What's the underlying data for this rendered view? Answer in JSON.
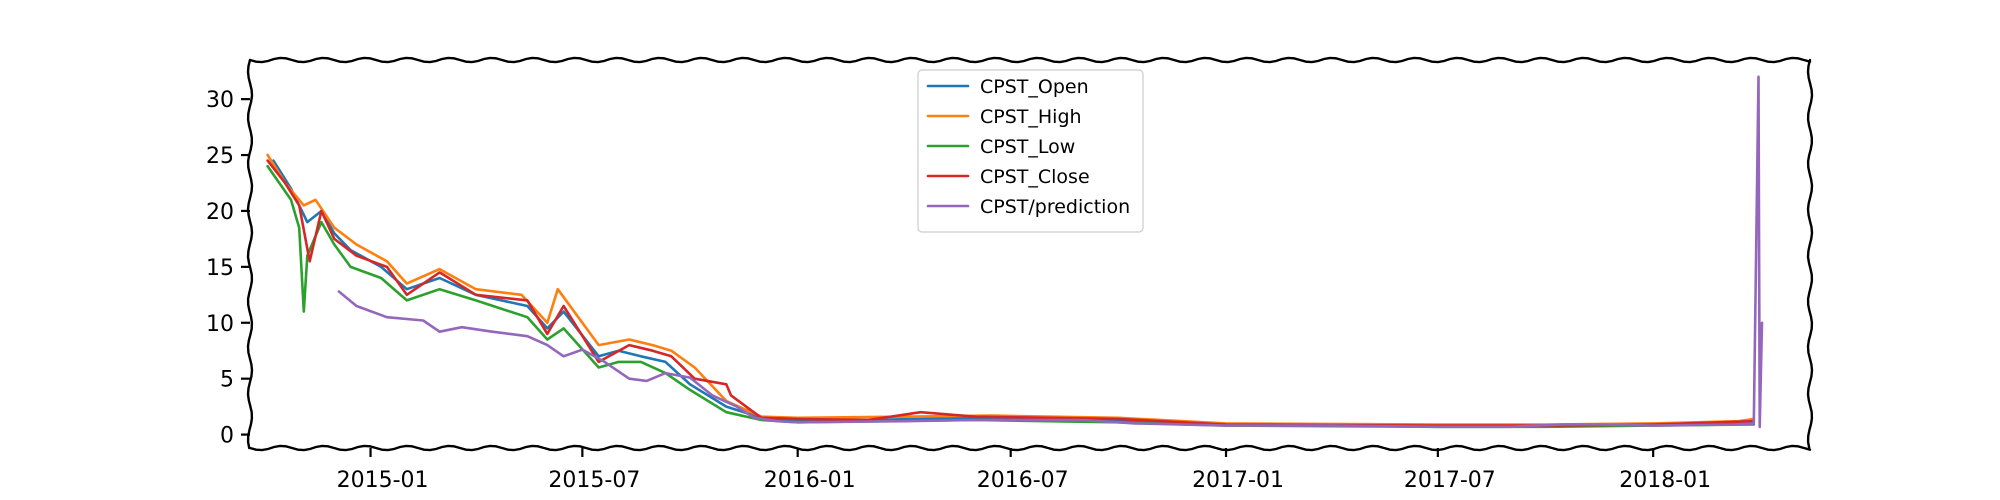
{
  "chart_data": {
    "type": "line",
    "title": "",
    "xlabel": "",
    "ylabel": "",
    "x_range": [
      "2014-09-20",
      "2018-05-15"
    ],
    "ylim": [
      -1.2,
      33.5
    ],
    "grid": false,
    "legend_placement": "top-center",
    "x_ticks": [
      "2015-01",
      "2015-07",
      "2016-01",
      "2016-07",
      "2017-01",
      "2017-07",
      "2018-01"
    ],
    "y_ticks": [
      0,
      5,
      10,
      15,
      20,
      25,
      30
    ],
    "series": [
      {
        "name": "CPST_Open",
        "color": "#1f77b4",
        "points": [
          [
            "2014-10-10",
            24.5
          ],
          [
            "2014-10-25",
            22.0
          ],
          [
            "2014-11-08",
            19.0
          ],
          [
            "2014-11-20",
            20.0
          ],
          [
            "2014-12-01",
            18.0
          ],
          [
            "2014-12-15",
            16.5
          ],
          [
            "2015-01-10",
            15.0
          ],
          [
            "2015-02-01",
            13.0
          ],
          [
            "2015-03-01",
            14.0
          ],
          [
            "2015-04-01",
            12.5
          ],
          [
            "2015-05-15",
            11.5
          ],
          [
            "2015-06-01",
            9.5
          ],
          [
            "2015-06-15",
            11.0
          ],
          [
            "2015-07-15",
            7.0
          ],
          [
            "2015-08-01",
            7.5
          ],
          [
            "2015-08-20",
            7.0
          ],
          [
            "2015-09-10",
            6.5
          ],
          [
            "2015-10-01",
            4.5
          ],
          [
            "2015-11-01",
            2.5
          ],
          [
            "2015-12-01",
            1.5
          ],
          [
            "2016-01-01",
            1.3
          ],
          [
            "2016-03-01",
            1.3
          ],
          [
            "2016-06-01",
            1.5
          ],
          [
            "2016-10-01",
            1.3
          ],
          [
            "2017-01-01",
            0.9
          ],
          [
            "2017-07-01",
            0.8
          ],
          [
            "2017-10-01",
            0.8
          ],
          [
            "2018-01-01",
            0.9
          ],
          [
            "2018-03-15",
            1.0
          ],
          [
            "2018-03-28",
            1.1
          ]
        ]
      },
      {
        "name": "CPST_High",
        "color": "#ff7f0e",
        "points": [
          [
            "2014-10-05",
            25.0
          ],
          [
            "2014-10-20",
            22.5
          ],
          [
            "2014-11-05",
            20.5
          ],
          [
            "2014-11-15",
            21.0
          ],
          [
            "2014-12-01",
            18.5
          ],
          [
            "2014-12-20",
            17.0
          ],
          [
            "2015-01-15",
            15.5
          ],
          [
            "2015-02-01",
            13.5
          ],
          [
            "2015-03-01",
            14.8
          ],
          [
            "2015-04-01",
            13.0
          ],
          [
            "2015-05-10",
            12.5
          ],
          [
            "2015-06-01",
            10.0
          ],
          [
            "2015-06-10",
            13.0
          ],
          [
            "2015-07-15",
            8.0
          ],
          [
            "2015-08-10",
            8.5
          ],
          [
            "2015-08-30",
            8.0
          ],
          [
            "2015-09-15",
            7.5
          ],
          [
            "2015-10-05",
            6.0
          ],
          [
            "2015-11-01",
            3.0
          ],
          [
            "2015-12-01",
            1.6
          ],
          [
            "2016-01-01",
            1.5
          ],
          [
            "2016-04-01",
            1.6
          ],
          [
            "2016-06-15",
            1.7
          ],
          [
            "2016-10-01",
            1.5
          ],
          [
            "2017-01-01",
            1.0
          ],
          [
            "2017-07-01",
            0.9
          ],
          [
            "2017-10-01",
            0.9
          ],
          [
            "2018-01-01",
            1.0
          ],
          [
            "2018-03-15",
            1.2
          ],
          [
            "2018-03-28",
            1.4
          ]
        ]
      },
      {
        "name": "CPST_Low",
        "color": "#2ca02c",
        "points": [
          [
            "2014-10-05",
            24.0
          ],
          [
            "2014-10-25",
            21.0
          ],
          [
            "2014-11-01",
            18.5
          ],
          [
            "2014-11-05",
            11.0
          ],
          [
            "2014-11-08",
            16.0
          ],
          [
            "2014-11-20",
            19.0
          ],
          [
            "2014-12-01",
            17.0
          ],
          [
            "2014-12-15",
            15.0
          ],
          [
            "2015-01-10",
            14.0
          ],
          [
            "2015-02-01",
            12.0
          ],
          [
            "2015-03-01",
            13.0
          ],
          [
            "2015-04-01",
            12.0
          ],
          [
            "2015-05-15",
            10.5
          ],
          [
            "2015-06-01",
            8.5
          ],
          [
            "2015-06-15",
            9.5
          ],
          [
            "2015-07-15",
            6.0
          ],
          [
            "2015-08-01",
            6.5
          ],
          [
            "2015-08-20",
            6.5
          ],
          [
            "2015-09-10",
            5.5
          ],
          [
            "2015-10-01",
            4.0
          ],
          [
            "2015-11-01",
            2.0
          ],
          [
            "2015-12-01",
            1.3
          ],
          [
            "2016-01-01",
            1.1
          ],
          [
            "2016-06-01",
            1.3
          ],
          [
            "2016-10-01",
            1.1
          ],
          [
            "2017-01-01",
            0.8
          ],
          [
            "2017-07-01",
            0.7
          ],
          [
            "2017-10-01",
            0.7
          ],
          [
            "2018-01-01",
            0.8
          ],
          [
            "2018-03-28",
            0.9
          ]
        ]
      },
      {
        "name": "CPST_Close",
        "color": "#d62728",
        "points": [
          [
            "2014-10-05",
            24.5
          ],
          [
            "2014-10-20",
            22.5
          ],
          [
            "2014-11-01",
            20.5
          ],
          [
            "2014-11-10",
            15.5
          ],
          [
            "2014-11-20",
            20.0
          ],
          [
            "2014-12-01",
            17.5
          ],
          [
            "2014-12-20",
            16.0
          ],
          [
            "2015-01-15",
            15.0
          ],
          [
            "2015-02-01",
            12.5
          ],
          [
            "2015-03-01",
            14.5
          ],
          [
            "2015-04-01",
            12.5
          ],
          [
            "2015-05-15",
            12.0
          ],
          [
            "2015-06-01",
            9.0
          ],
          [
            "2015-06-15",
            11.5
          ],
          [
            "2015-07-15",
            6.5
          ],
          [
            "2015-08-10",
            8.0
          ],
          [
            "2015-08-30",
            7.5
          ],
          [
            "2015-09-15",
            7.0
          ],
          [
            "2015-10-05",
            5.0
          ],
          [
            "2015-11-01",
            4.5
          ],
          [
            "2015-11-05",
            3.5
          ],
          [
            "2015-12-01",
            1.5
          ],
          [
            "2016-01-01",
            1.4
          ],
          [
            "2016-03-01",
            1.3
          ],
          [
            "2016-04-15",
            2.0
          ],
          [
            "2016-06-01",
            1.6
          ],
          [
            "2016-10-01",
            1.4
          ],
          [
            "2017-01-01",
            0.9
          ],
          [
            "2017-07-01",
            0.8
          ],
          [
            "2017-10-01",
            0.8
          ],
          [
            "2018-01-01",
            0.9
          ],
          [
            "2018-03-28",
            1.2
          ]
        ]
      },
      {
        "name": "CPST/prediction",
        "color": "#9467bd",
        "points": [
          [
            "2014-12-05",
            12.8
          ],
          [
            "2014-12-20",
            11.5
          ],
          [
            "2015-01-15",
            10.5
          ],
          [
            "2015-02-15",
            10.2
          ],
          [
            "2015-03-01",
            9.2
          ],
          [
            "2015-03-20",
            9.6
          ],
          [
            "2015-04-15",
            9.2
          ],
          [
            "2015-05-15",
            8.8
          ],
          [
            "2015-06-01",
            8.0
          ],
          [
            "2015-06-15",
            7.0
          ],
          [
            "2015-07-01",
            7.6
          ],
          [
            "2015-07-20",
            6.5
          ],
          [
            "2015-08-10",
            5.0
          ],
          [
            "2015-08-25",
            4.8
          ],
          [
            "2015-09-10",
            5.5
          ],
          [
            "2015-10-01",
            5.1
          ],
          [
            "2015-10-20",
            3.5
          ],
          [
            "2015-11-10",
            2.5
          ],
          [
            "2015-11-25",
            1.5
          ],
          [
            "2015-12-15",
            1.2
          ],
          [
            "2016-01-01",
            1.1
          ],
          [
            "2016-04-01",
            1.2
          ],
          [
            "2016-06-01",
            1.3
          ],
          [
            "2016-09-01",
            1.3
          ],
          [
            "2016-10-15",
            1.0
          ],
          [
            "2017-01-01",
            0.8
          ],
          [
            "2017-04-01",
            0.8
          ],
          [
            "2017-07-01",
            0.7
          ],
          [
            "2017-09-01",
            0.7
          ],
          [
            "2017-10-15",
            0.9
          ],
          [
            "2017-11-15",
            0.9
          ],
          [
            "2018-01-01",
            0.8
          ],
          [
            "2018-03-10",
            0.9
          ],
          [
            "2018-03-28",
            1.0
          ],
          [
            "2018-04-01",
            32.0
          ],
          [
            "2018-04-02",
            0.7
          ],
          [
            "2018-04-04",
            10.0
          ]
        ]
      }
    ]
  }
}
